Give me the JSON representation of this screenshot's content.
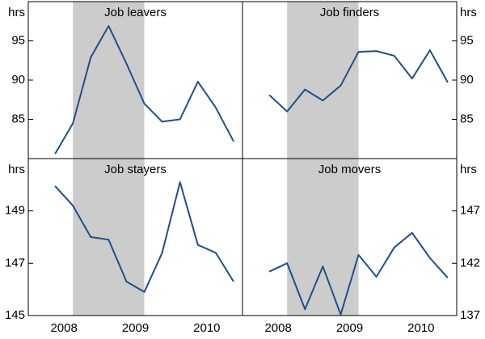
{
  "chart_data": [
    {
      "type": "line",
      "title": "Job leavers",
      "ylabel": "hrs",
      "color": "#1f4e8c",
      "x": [
        2008.375,
        2008.625,
        2008.875,
        2009.125,
        2009.375,
        2009.625,
        2009.875,
        2010.125,
        2010.375,
        2010.625,
        2010.875
      ],
      "values": [
        80.6,
        84.5,
        92.9,
        96.9,
        92.1,
        87.0,
        84.7,
        85.0,
        89.8,
        86.5,
        82.2
      ],
      "xlim": [
        2008,
        2011
      ],
      "ylim": [
        80,
        100
      ],
      "yticks": [
        85,
        90,
        95
      ],
      "shaded_range": [
        2008.625,
        2009.625
      ],
      "shade_color": "#cccccc"
    },
    {
      "type": "line",
      "title": "Job finders",
      "ylabel": "hrs",
      "color": "#1f4e8c",
      "x": [
        2008.375,
        2008.625,
        2008.875,
        2009.125,
        2009.375,
        2009.625,
        2009.875,
        2010.125,
        2010.375,
        2010.625,
        2010.875
      ],
      "values": [
        88.1,
        86.0,
        88.8,
        87.4,
        89.3,
        93.6,
        93.7,
        93.1,
        90.2,
        93.8,
        89.7
      ],
      "xlim": [
        2008,
        2011
      ],
      "ylim": [
        80,
        100
      ],
      "yticks": [
        85,
        90,
        95
      ],
      "shaded_range": [
        2008.625,
        2009.625
      ],
      "shade_color": "#cccccc"
    },
    {
      "type": "line",
      "title": "Job stayers",
      "ylabel": "hrs",
      "color": "#1f4e8c",
      "x": [
        2008.375,
        2008.625,
        2008.875,
        2009.125,
        2009.375,
        2009.625,
        2009.875,
        2010.125,
        2010.375,
        2010.625,
        2010.875
      ],
      "values": [
        149.95,
        149.2,
        148.0,
        147.9,
        146.3,
        145.9,
        147.4,
        150.1,
        147.7,
        147.4,
        146.3
      ],
      "xlim": [
        2008,
        2011
      ],
      "ylim": [
        145,
        151
      ],
      "yticks": [
        145,
        147,
        149
      ],
      "xticks": [
        {
          "value": 2008.5,
          "label": "2008"
        },
        {
          "value": 2009.5,
          "label": "2009"
        },
        {
          "value": 2010.5,
          "label": "2010"
        }
      ],
      "shaded_range": [
        2008.625,
        2009.625
      ],
      "shade_color": "#cccccc"
    },
    {
      "type": "line",
      "title": "Job movers",
      "ylabel": "hrs",
      "color": "#1f4e8c",
      "x": [
        2008.375,
        2008.625,
        2008.875,
        2009.125,
        2009.375,
        2009.625,
        2009.875,
        2010.125,
        2010.375,
        2010.625,
        2010.875
      ],
      "values": [
        141.2,
        142.0,
        137.6,
        141.7,
        137.1,
        142.8,
        140.7,
        143.5,
        144.9,
        142.5,
        140.6
      ],
      "xlim": [
        2008,
        2011
      ],
      "ylim": [
        137,
        152
      ],
      "yticks": [
        137,
        142,
        147
      ],
      "xticks": [
        {
          "value": 2008.5,
          "label": "2008"
        },
        {
          "value": 2009.5,
          "label": "2009"
        },
        {
          "value": 2010.5,
          "label": "2010"
        }
      ],
      "shaded_range": [
        2008.625,
        2009.625
      ],
      "shade_color": "#cccccc"
    }
  ]
}
